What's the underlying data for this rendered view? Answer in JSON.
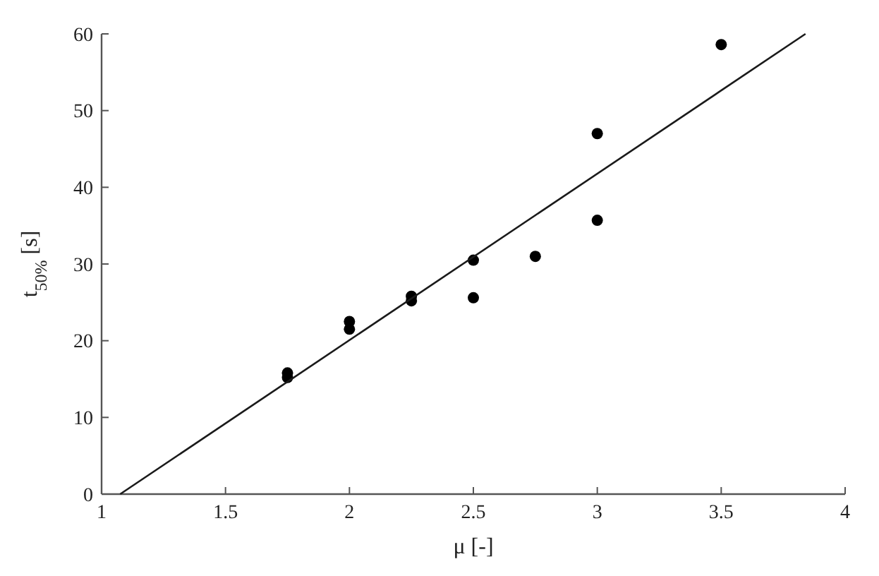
{
  "chart_data": {
    "type": "scatter",
    "xlabel": "μ [-]",
    "ylabel": "t$_{50%}$ [s]",
    "xlim": [
      1,
      4
    ],
    "xticks": [
      1,
      1.5,
      2,
      2.5,
      3,
      3.5,
      4
    ],
    "ylim": [
      0,
      60
    ],
    "yticks": [
      0,
      10,
      20,
      30,
      40,
      50,
      60
    ],
    "grid": false,
    "marker": "circle",
    "series": [
      {
        "color": "#000000",
        "x": [
          1.75,
          1.75,
          2,
          2,
          2.25,
          2.25,
          2.5,
          2.5,
          2.75,
          3,
          3,
          3.5
        ],
        "values": [
          15.8,
          15.2,
          22.5,
          21.5,
          25.8,
          25.2,
          30.5,
          25.6,
          31,
          47,
          35.7,
          58.6
        ]
      },
      {
        "type": "line",
        "color": "#1a1a1a",
        "line_style": "solid",
        "marker": "none",
        "x": [
          1.075,
          3.84
        ],
        "values": [
          0,
          60
        ]
      }
    ]
  }
}
